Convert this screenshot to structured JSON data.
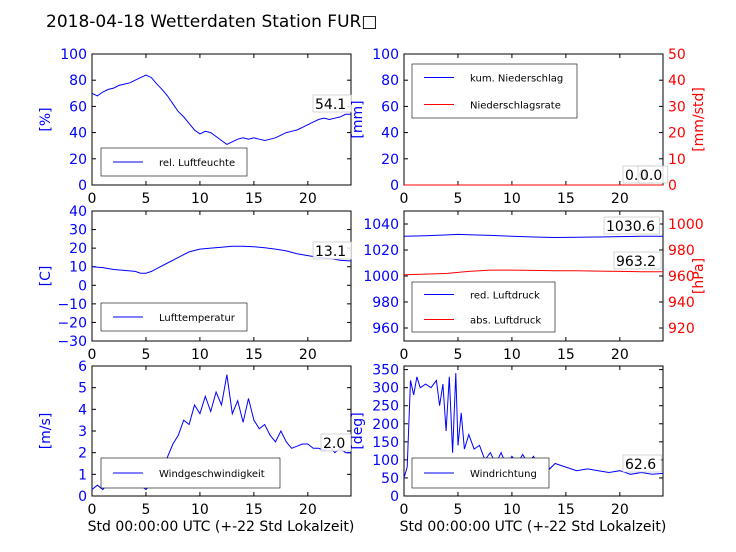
{
  "title": "2018-04-18 Wetterdaten Station FUR□",
  "xlabel": "Std 00:00:00 UTC (+-22 Std Lokalzeit)",
  "colors": {
    "left": "#0000ff",
    "right": "#ff0000",
    "axis": "#000000"
  },
  "chart_data": [
    {
      "id": "humidity",
      "type": "line",
      "xlim": [
        0,
        24
      ],
      "ylim": [
        0,
        100
      ],
      "xticks": [
        "0",
        "5",
        "10",
        "15",
        "20"
      ],
      "yticks": [
        "0",
        "20",
        "40",
        "60",
        "80",
        "100"
      ],
      "ylabel": "[%]",
      "last_value": "54.1",
      "legend": [
        "rel. Luftfeuchte"
      ],
      "series": [
        {
          "name": "rel. Luftfeuchte",
          "color": "#0000ff",
          "x": [
            0,
            0.5,
            1,
            1.5,
            2,
            2.5,
            3,
            3.5,
            4,
            4.5,
            5,
            5.5,
            6,
            6.5,
            7,
            7.5,
            8,
            8.5,
            9,
            9.5,
            10,
            10.5,
            11,
            11.5,
            12,
            12.5,
            13,
            13.5,
            14,
            14.5,
            15,
            15.5,
            16,
            16.5,
            17,
            17.5,
            18,
            18.5,
            19,
            19.5,
            20,
            20.5,
            21,
            21.5,
            22,
            22.5,
            23,
            23.5,
            24
          ],
          "y": [
            70,
            68,
            71,
            73,
            74,
            76,
            77,
            78,
            80,
            82,
            84,
            82,
            77,
            73,
            68,
            62,
            56,
            52,
            47,
            42,
            39,
            41,
            40,
            37,
            34,
            31,
            33,
            35,
            36,
            35,
            36,
            35,
            34,
            35,
            36,
            38,
            40,
            41,
            42,
            44,
            46,
            48,
            50,
            51,
            50,
            51,
            52,
            54,
            54
          ]
        }
      ]
    },
    {
      "id": "precip",
      "type": "line",
      "xlim": [
        0,
        24
      ],
      "ylim": [
        0,
        100
      ],
      "y2lim": [
        0,
        50
      ],
      "xticks": [
        "0",
        "5",
        "10",
        "15",
        "20"
      ],
      "yticks": [
        "0",
        "20",
        "40",
        "60",
        "80",
        "100"
      ],
      "y2ticks": [
        "0",
        "10",
        "20",
        "30",
        "40",
        "50"
      ],
      "ylabel": "[mm]",
      "y2label": "[mm/std]",
      "last_value": "0.0",
      "last_value2": "0.0",
      "legend": [
        "kum. Niederschlag",
        "Niederschlagsrate"
      ],
      "series": [
        {
          "name": "kum. Niederschlag",
          "color": "#0000ff",
          "axis": "left",
          "x": [
            0,
            24
          ],
          "y": [
            0,
            0
          ]
        },
        {
          "name": "Niederschlagsrate",
          "color": "#ff0000",
          "axis": "right",
          "x": [
            0,
            24
          ],
          "y": [
            0,
            0
          ]
        }
      ]
    },
    {
      "id": "temperature",
      "type": "line",
      "xlim": [
        0,
        24
      ],
      "ylim": [
        -30,
        40
      ],
      "xticks": [
        "0",
        "5",
        "10",
        "15",
        "20"
      ],
      "yticks": [
        "−30",
        "−20",
        "−10",
        "0",
        "10",
        "20",
        "30",
        "40"
      ],
      "ylabel": "[C]",
      "last_value": "13.1",
      "legend": [
        "Lufttemperatur"
      ],
      "series": [
        {
          "name": "Lufttemperatur",
          "color": "#0000ff",
          "x": [
            0,
            1,
            2,
            3,
            4,
            4.5,
            5,
            5.5,
            6,
            7,
            8,
            9,
            10,
            11,
            12,
            13,
            14,
            15,
            16,
            17,
            18,
            19,
            20,
            21,
            22,
            23,
            24
          ],
          "y": [
            10,
            9.5,
            8.5,
            8,
            7.5,
            6.5,
            6.5,
            7.5,
            9,
            12,
            15,
            18,
            19.5,
            20,
            20.5,
            21,
            21,
            20.8,
            20.2,
            19.5,
            18.5,
            17,
            16,
            15,
            14.5,
            13.5,
            13.1
          ]
        }
      ]
    },
    {
      "id": "pressure",
      "type": "line",
      "xlim": [
        0,
        24
      ],
      "ylim": [
        950,
        1050
      ],
      "y2lim": [
        910,
        1010
      ],
      "xticks": [
        "0",
        "5",
        "10",
        "15",
        "20"
      ],
      "yticks": [
        "960",
        "980",
        "1000",
        "1020",
        "1040"
      ],
      "y2ticks": [
        "920",
        "940",
        "960",
        "980",
        "1000"
      ],
      "y2label": "[hPa]",
      "last_value": "1030.6",
      "last_value2": "963.2",
      "legend": [
        "red. Luftdruck",
        "abs. Luftdruck"
      ],
      "series": [
        {
          "name": "red. Luftdruck",
          "color": "#0000ff",
          "axis": "left",
          "x": [
            0,
            2,
            4,
            5,
            6,
            8,
            10,
            12,
            14,
            16,
            18,
            20,
            22,
            24
          ],
          "y": [
            1030.5,
            1031,
            1031.6,
            1032,
            1031.8,
            1031.2,
            1030.5,
            1030,
            1029.6,
            1029.8,
            1030,
            1030.3,
            1030.5,
            1030.6
          ]
        },
        {
          "name": "abs. Luftdruck",
          "color": "#ff0000",
          "axis": "right",
          "x": [
            0,
            2,
            4,
            6,
            8,
            10,
            12,
            14,
            16,
            18,
            20,
            22,
            24
          ],
          "y": [
            961,
            961.5,
            962,
            963.5,
            964.5,
            964.5,
            964.3,
            964,
            964,
            963.8,
            963.5,
            963.3,
            963.2
          ]
        }
      ]
    },
    {
      "id": "windspeed",
      "type": "line",
      "xlim": [
        0,
        24
      ],
      "ylim": [
        0,
        6
      ],
      "xticks": [
        "0",
        "5",
        "10",
        "15",
        "20"
      ],
      "yticks": [
        "0",
        "1",
        "2",
        "3",
        "4",
        "5",
        "6"
      ],
      "ylabel": "[m/s]",
      "last_value": "2.0",
      "legend": [
        "Windgeschwindigkeit"
      ],
      "series": [
        {
          "name": "Windgeschwindigkeit",
          "color": "#0000ff",
          "x": [
            0,
            0.5,
            1,
            1.5,
            2,
            2.5,
            3,
            3.5,
            4,
            4.5,
            5,
            5.5,
            6,
            6.5,
            7,
            7.5,
            8,
            8.5,
            9,
            9.5,
            10,
            10.5,
            11,
            11.5,
            12,
            12.5,
            13,
            13.5,
            14,
            14.5,
            15,
            15.5,
            16,
            16.5,
            17,
            17.5,
            18,
            18.5,
            19,
            19.5,
            20,
            20.5,
            21,
            21.5,
            22,
            22.5,
            23,
            23.5,
            24
          ],
          "y": [
            0.3,
            0.5,
            0.3,
            0.6,
            0.9,
            1.1,
            1.0,
            0.8,
            0.6,
            0.5,
            0.3,
            0.6,
            0.9,
            1.3,
            1.8,
            2.4,
            2.8,
            3.5,
            3.3,
            4.2,
            3.8,
            4.6,
            3.9,
            4.8,
            4.2,
            5.6,
            3.8,
            4.4,
            3.4,
            4.5,
            3.5,
            3.1,
            3.3,
            2.8,
            2.5,
            3.0,
            2.5,
            2.2,
            2.3,
            2.4,
            2.4,
            2.2,
            2.2,
            2.1,
            2.3,
            2.0,
            2.2,
            2.0,
            2.0
          ]
        }
      ]
    },
    {
      "id": "winddir",
      "type": "line",
      "xlim": [
        0,
        24
      ],
      "ylim": [
        0,
        360
      ],
      "xticks": [
        "0",
        "5",
        "10",
        "15",
        "20"
      ],
      "yticks": [
        "0",
        "50",
        "100",
        "150",
        "200",
        "250",
        "300",
        "350"
      ],
      "ylabel": "[deg]",
      "last_value": "62.6",
      "legend": [
        "Windrichtung"
      ],
      "series": [
        {
          "name": "Windrichtung",
          "color": "#0000ff",
          "x": [
            0,
            0.3,
            0.6,
            0.9,
            1.2,
            1.5,
            2,
            2.5,
            3,
            3.3,
            3.6,
            3.9,
            4.2,
            4.5,
            4.8,
            5,
            5.3,
            5.6,
            6,
            6.5,
            7,
            7.5,
            8,
            8.5,
            9,
            9.5,
            10,
            10.5,
            11,
            11.5,
            12,
            12.5,
            13,
            13.5,
            14,
            15,
            16,
            17,
            18,
            19,
            20,
            21,
            22,
            23,
            24
          ],
          "y": [
            50,
            80,
            320,
            280,
            330,
            300,
            310,
            300,
            320,
            250,
            310,
            180,
            330,
            120,
            340,
            140,
            230,
            130,
            170,
            130,
            140,
            100,
            120,
            90,
            120,
            85,
            110,
            90,
            115,
            90,
            110,
            80,
            100,
            75,
            90,
            80,
            70,
            75,
            70,
            65,
            70,
            60,
            65,
            60,
            62.6
          ]
        }
      ]
    }
  ]
}
